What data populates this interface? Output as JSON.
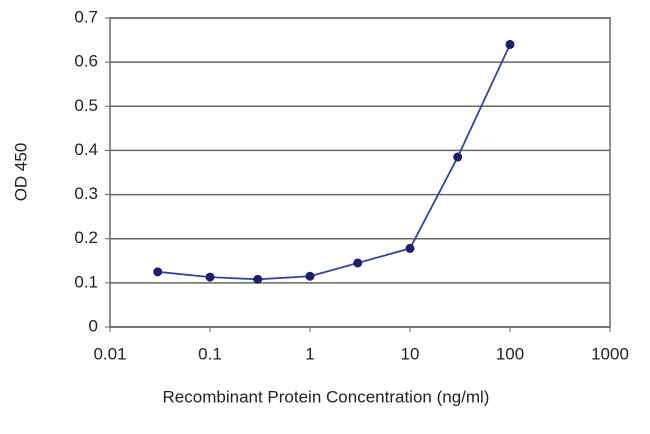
{
  "chart_data": {
    "type": "line",
    "x_label": "Recombinant Protein Concentration (ng/ml)",
    "y_label": "OD 450",
    "x": [
      0.03,
      0.1,
      0.3,
      1,
      3,
      10,
      30,
      100
    ],
    "series": [
      {
        "name": "OD 450",
        "color": "#3344a8",
        "marker_color": "#1a1f6e",
        "values": [
          0.125,
          0.113,
          0.108,
          0.115,
          0.145,
          0.178,
          0.385,
          0.64
        ]
      }
    ],
    "xscale": "log",
    "xlim": [
      0.01,
      1000
    ],
    "xticks": [
      0.01,
      0.1,
      1,
      10,
      100,
      1000
    ],
    "ylim": [
      0,
      0.7
    ],
    "yticks": [
      0,
      0.1,
      0.2,
      0.3,
      0.4,
      0.5,
      0.6,
      0.7
    ],
    "grid": true
  }
}
